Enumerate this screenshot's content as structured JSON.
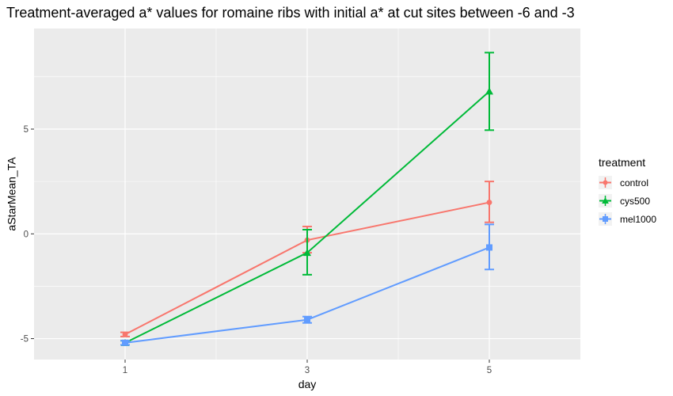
{
  "chart_data": {
    "type": "line",
    "title": "Treatment-averaged a* values for romaine ribs with initial a* at cut sites between -6 and -3",
    "xlabel": "day",
    "ylabel": "aStarMean_TA",
    "x": [
      1,
      3,
      5
    ],
    "x_ticks": [
      "1",
      "3",
      "5"
    ],
    "y_ticks": [
      -5,
      0,
      5
    ],
    "y_tick_labels": [
      "-5",
      "0",
      "5"
    ],
    "xlim": [
      0,
      6
    ],
    "ylim": [
      -6.0,
      9.8
    ],
    "grid": true,
    "legend": {
      "title": "treatment",
      "position": "right"
    },
    "series": [
      {
        "name": "control",
        "color": "#F8766D",
        "marker": "circle",
        "values": [
          -4.8,
          -0.3,
          1.5
        ],
        "err_low": [
          -4.9,
          -0.9,
          0.55
        ],
        "err_high": [
          -4.7,
          0.35,
          2.5
        ]
      },
      {
        "name": "cys500",
        "color": "#00BA38",
        "marker": "triangle",
        "values": [
          -5.2,
          -0.9,
          6.8
        ],
        "err_low": [
          -5.3,
          -1.95,
          4.95
        ],
        "err_high": [
          -5.1,
          0.2,
          8.65
        ]
      },
      {
        "name": "mel1000",
        "color": "#619CFF",
        "marker": "square",
        "values": [
          -5.2,
          -4.1,
          -0.65
        ],
        "err_low": [
          -5.3,
          -4.25,
          -1.7
        ],
        "err_high": [
          -5.1,
          -3.95,
          0.45
        ]
      }
    ]
  }
}
